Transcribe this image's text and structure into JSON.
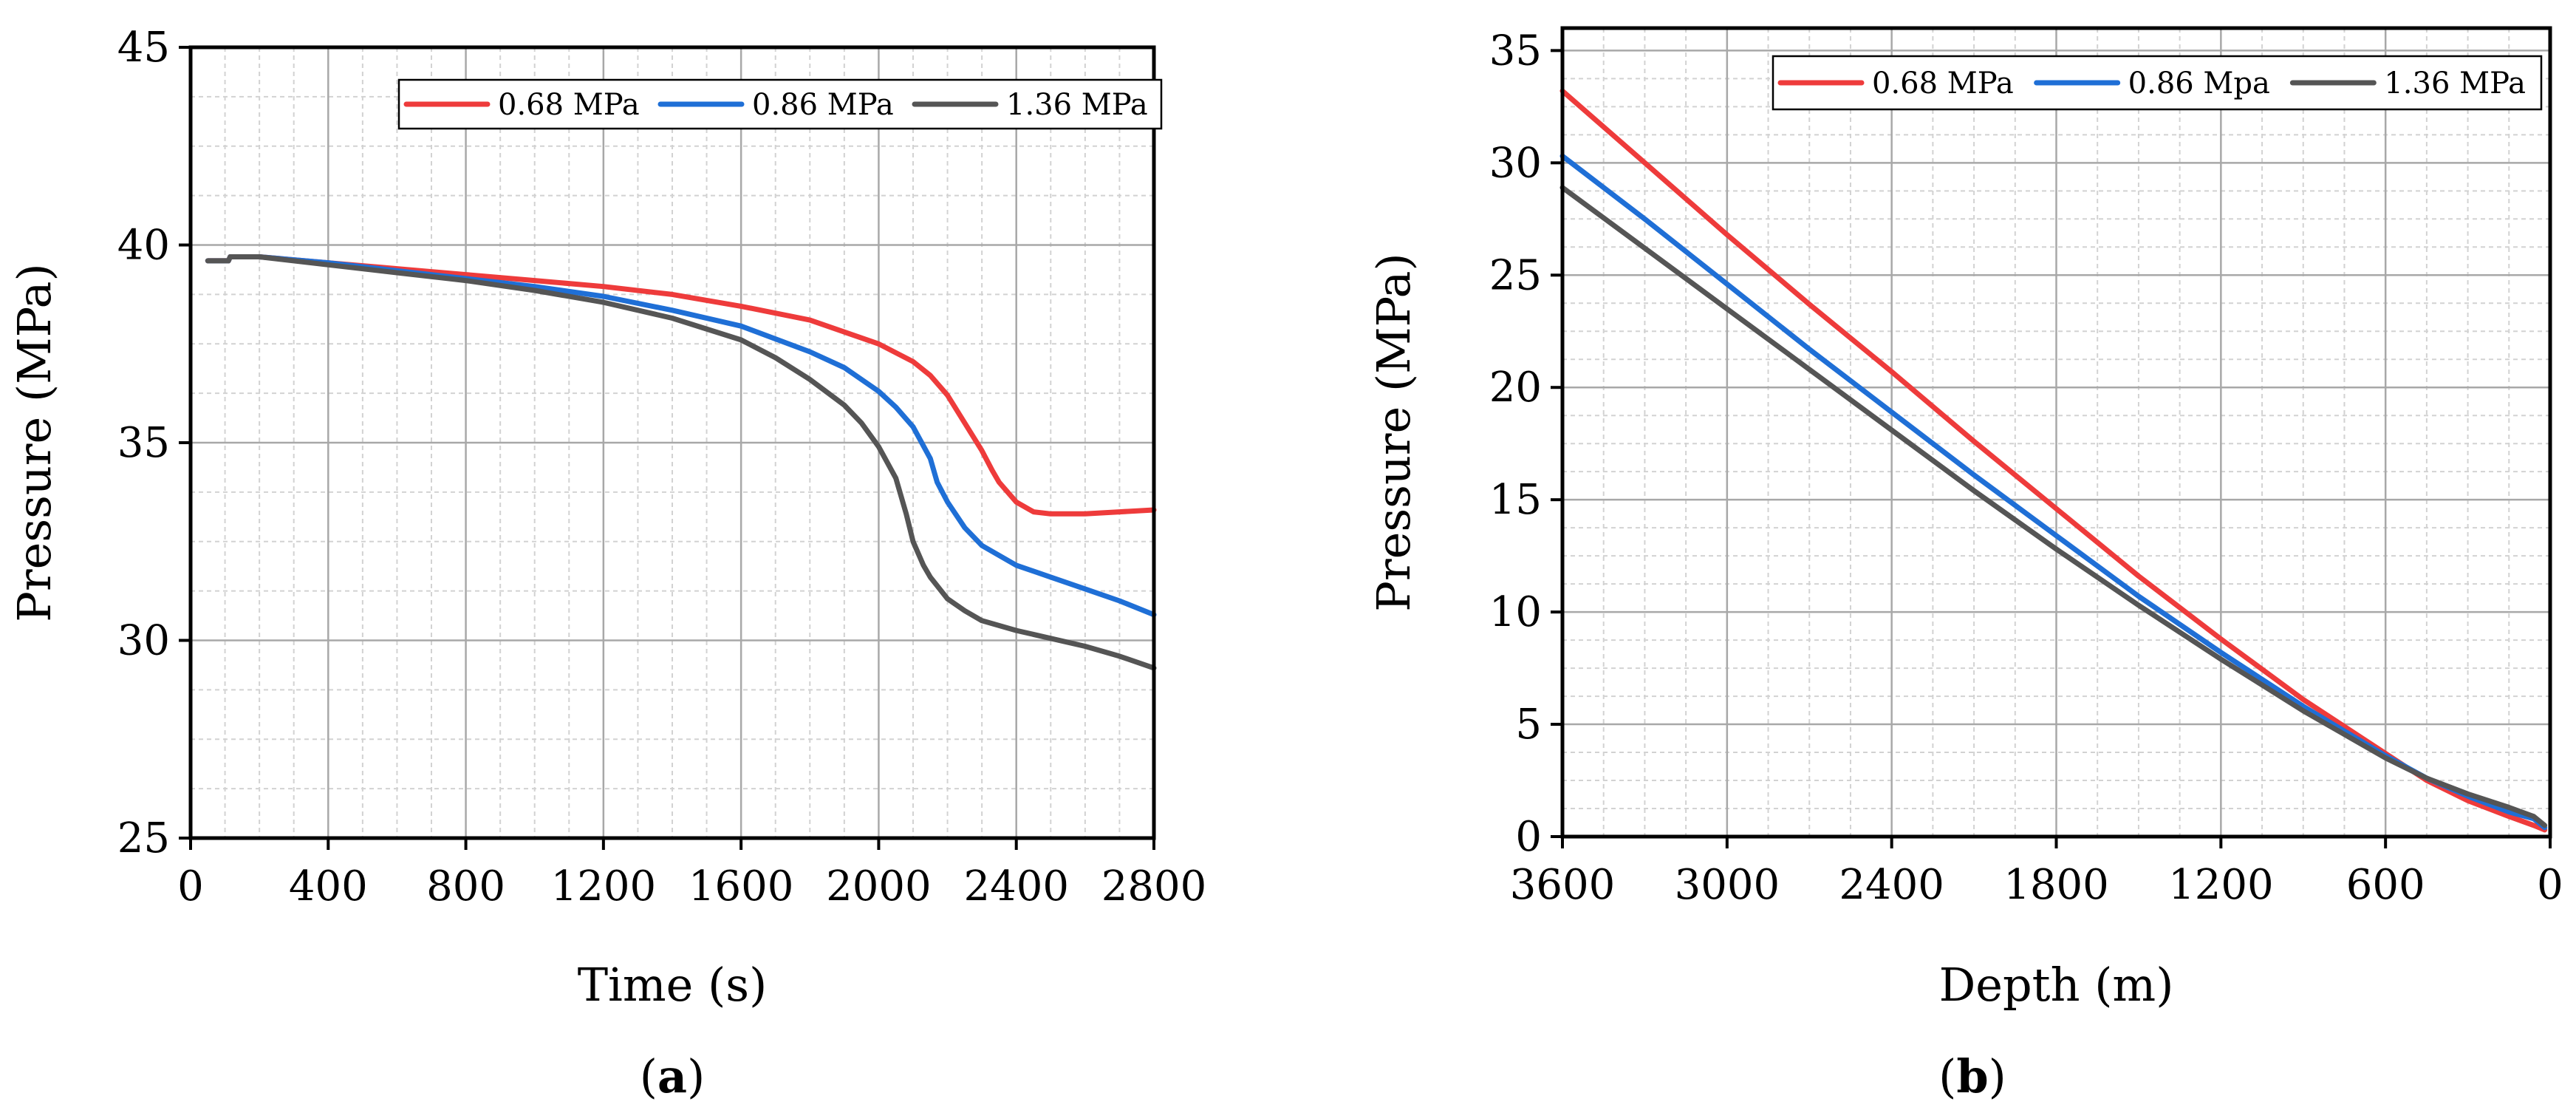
{
  "chart_data": [
    {
      "type": "line",
      "panel_label": "a",
      "xlabel": "Time (s)",
      "ylabel": "Pressure (MPa)",
      "xlim": [
        0,
        2800
      ],
      "ylim": [
        25,
        45
      ],
      "xticks": [
        0,
        400,
        800,
        1200,
        1600,
        2000,
        2400,
        2800
      ],
      "yticks": [
        25,
        30,
        35,
        40,
        45
      ],
      "grid": true,
      "legend": "top-right",
      "series": [
        {
          "name": "0.68 MPa",
          "color": "#ee3b3b",
          "x": [
            50,
            100,
            110,
            115,
            200,
            400,
            600,
            800,
            1000,
            1200,
            1400,
            1600,
            1800,
            1900,
            2000,
            2100,
            2150,
            2200,
            2250,
            2300,
            2330,
            2350,
            2400,
            2450,
            2500,
            2600,
            2700,
            2800
          ],
          "y": [
            39.6,
            39.6,
            39.6,
            39.7,
            39.7,
            39.55,
            39.4,
            39.25,
            39.1,
            38.95,
            38.75,
            38.45,
            38.1,
            37.8,
            37.5,
            37.05,
            36.7,
            36.2,
            35.5,
            34.8,
            34.3,
            34.0,
            33.5,
            33.25,
            33.2,
            33.2,
            33.25,
            33.3
          ]
        },
        {
          "name": "0.86 MPa",
          "color": "#1f6fd6",
          "x": [
            50,
            100,
            110,
            115,
            200,
            400,
            600,
            800,
            1000,
            1200,
            1400,
            1600,
            1800,
            1900,
            2000,
            2050,
            2100,
            2150,
            2170,
            2200,
            2250,
            2300,
            2400,
            2500,
            2600,
            2700,
            2800
          ],
          "y": [
            39.6,
            39.6,
            39.6,
            39.7,
            39.7,
            39.55,
            39.35,
            39.15,
            38.95,
            38.7,
            38.35,
            37.95,
            37.3,
            36.9,
            36.3,
            35.9,
            35.4,
            34.6,
            34.0,
            33.5,
            32.85,
            32.4,
            31.9,
            31.6,
            31.3,
            31.0,
            30.65
          ]
        },
        {
          "name": "1.36 MPa",
          "color": "#555555",
          "x": [
            50,
            100,
            110,
            115,
            200,
            400,
            600,
            800,
            1000,
            1200,
            1400,
            1600,
            1700,
            1800,
            1900,
            1950,
            2000,
            2050,
            2080,
            2100,
            2130,
            2150,
            2200,
            2250,
            2300,
            2400,
            2500,
            2600,
            2700,
            2800
          ],
          "y": [
            39.6,
            39.6,
            39.6,
            39.7,
            39.7,
            39.5,
            39.3,
            39.1,
            38.85,
            38.55,
            38.15,
            37.6,
            37.15,
            36.6,
            35.95,
            35.5,
            34.9,
            34.1,
            33.2,
            32.5,
            31.9,
            31.6,
            31.05,
            30.75,
            30.5,
            30.25,
            30.05,
            29.85,
            29.6,
            29.3
          ]
        }
      ]
    },
    {
      "type": "line",
      "panel_label": "b",
      "xlabel": "Depth (m)",
      "ylabel": "Pressure (MPa)",
      "xlim": [
        3600,
        0
      ],
      "x_reversed": true,
      "ylim": [
        0,
        36
      ],
      "xticks": [
        3600,
        3000,
        2400,
        1800,
        1200,
        600,
        0
      ],
      "yticks": [
        0,
        5,
        10,
        15,
        20,
        25,
        30,
        35
      ],
      "grid": true,
      "legend": "top-right",
      "series": [
        {
          "name": "0.68 MPa",
          "color": "#ee3b3b",
          "x": [
            3600,
            3300,
            3000,
            2700,
            2400,
            2100,
            1800,
            1500,
            1200,
            900,
            600,
            450,
            300,
            150,
            60,
            20
          ],
          "y": [
            33.2,
            30.0,
            26.8,
            23.7,
            20.7,
            17.6,
            14.6,
            11.6,
            8.8,
            6.1,
            3.7,
            2.5,
            1.6,
            0.9,
            0.5,
            0.3
          ]
        },
        {
          "name": "0.86 Mpa",
          "color": "#1f6fd6",
          "x": [
            3600,
            3300,
            3000,
            2700,
            2400,
            2100,
            1800,
            1500,
            1200,
            900,
            600,
            450,
            300,
            150,
            60,
            20
          ],
          "y": [
            30.3,
            27.5,
            24.6,
            21.7,
            18.9,
            16.1,
            13.4,
            10.7,
            8.2,
            5.8,
            3.6,
            2.6,
            1.8,
            1.1,
            0.8,
            0.4
          ]
        },
        {
          "name": "1.36 MPa",
          "color": "#555555",
          "x": [
            3600,
            3300,
            3000,
            2700,
            2400,
            2100,
            1800,
            1500,
            1200,
            900,
            600,
            450,
            300,
            150,
            60,
            20
          ],
          "y": [
            28.9,
            26.2,
            23.5,
            20.8,
            18.1,
            15.4,
            12.8,
            10.3,
            7.9,
            5.6,
            3.5,
            2.6,
            1.9,
            1.3,
            0.9,
            0.5
          ]
        }
      ]
    }
  ]
}
